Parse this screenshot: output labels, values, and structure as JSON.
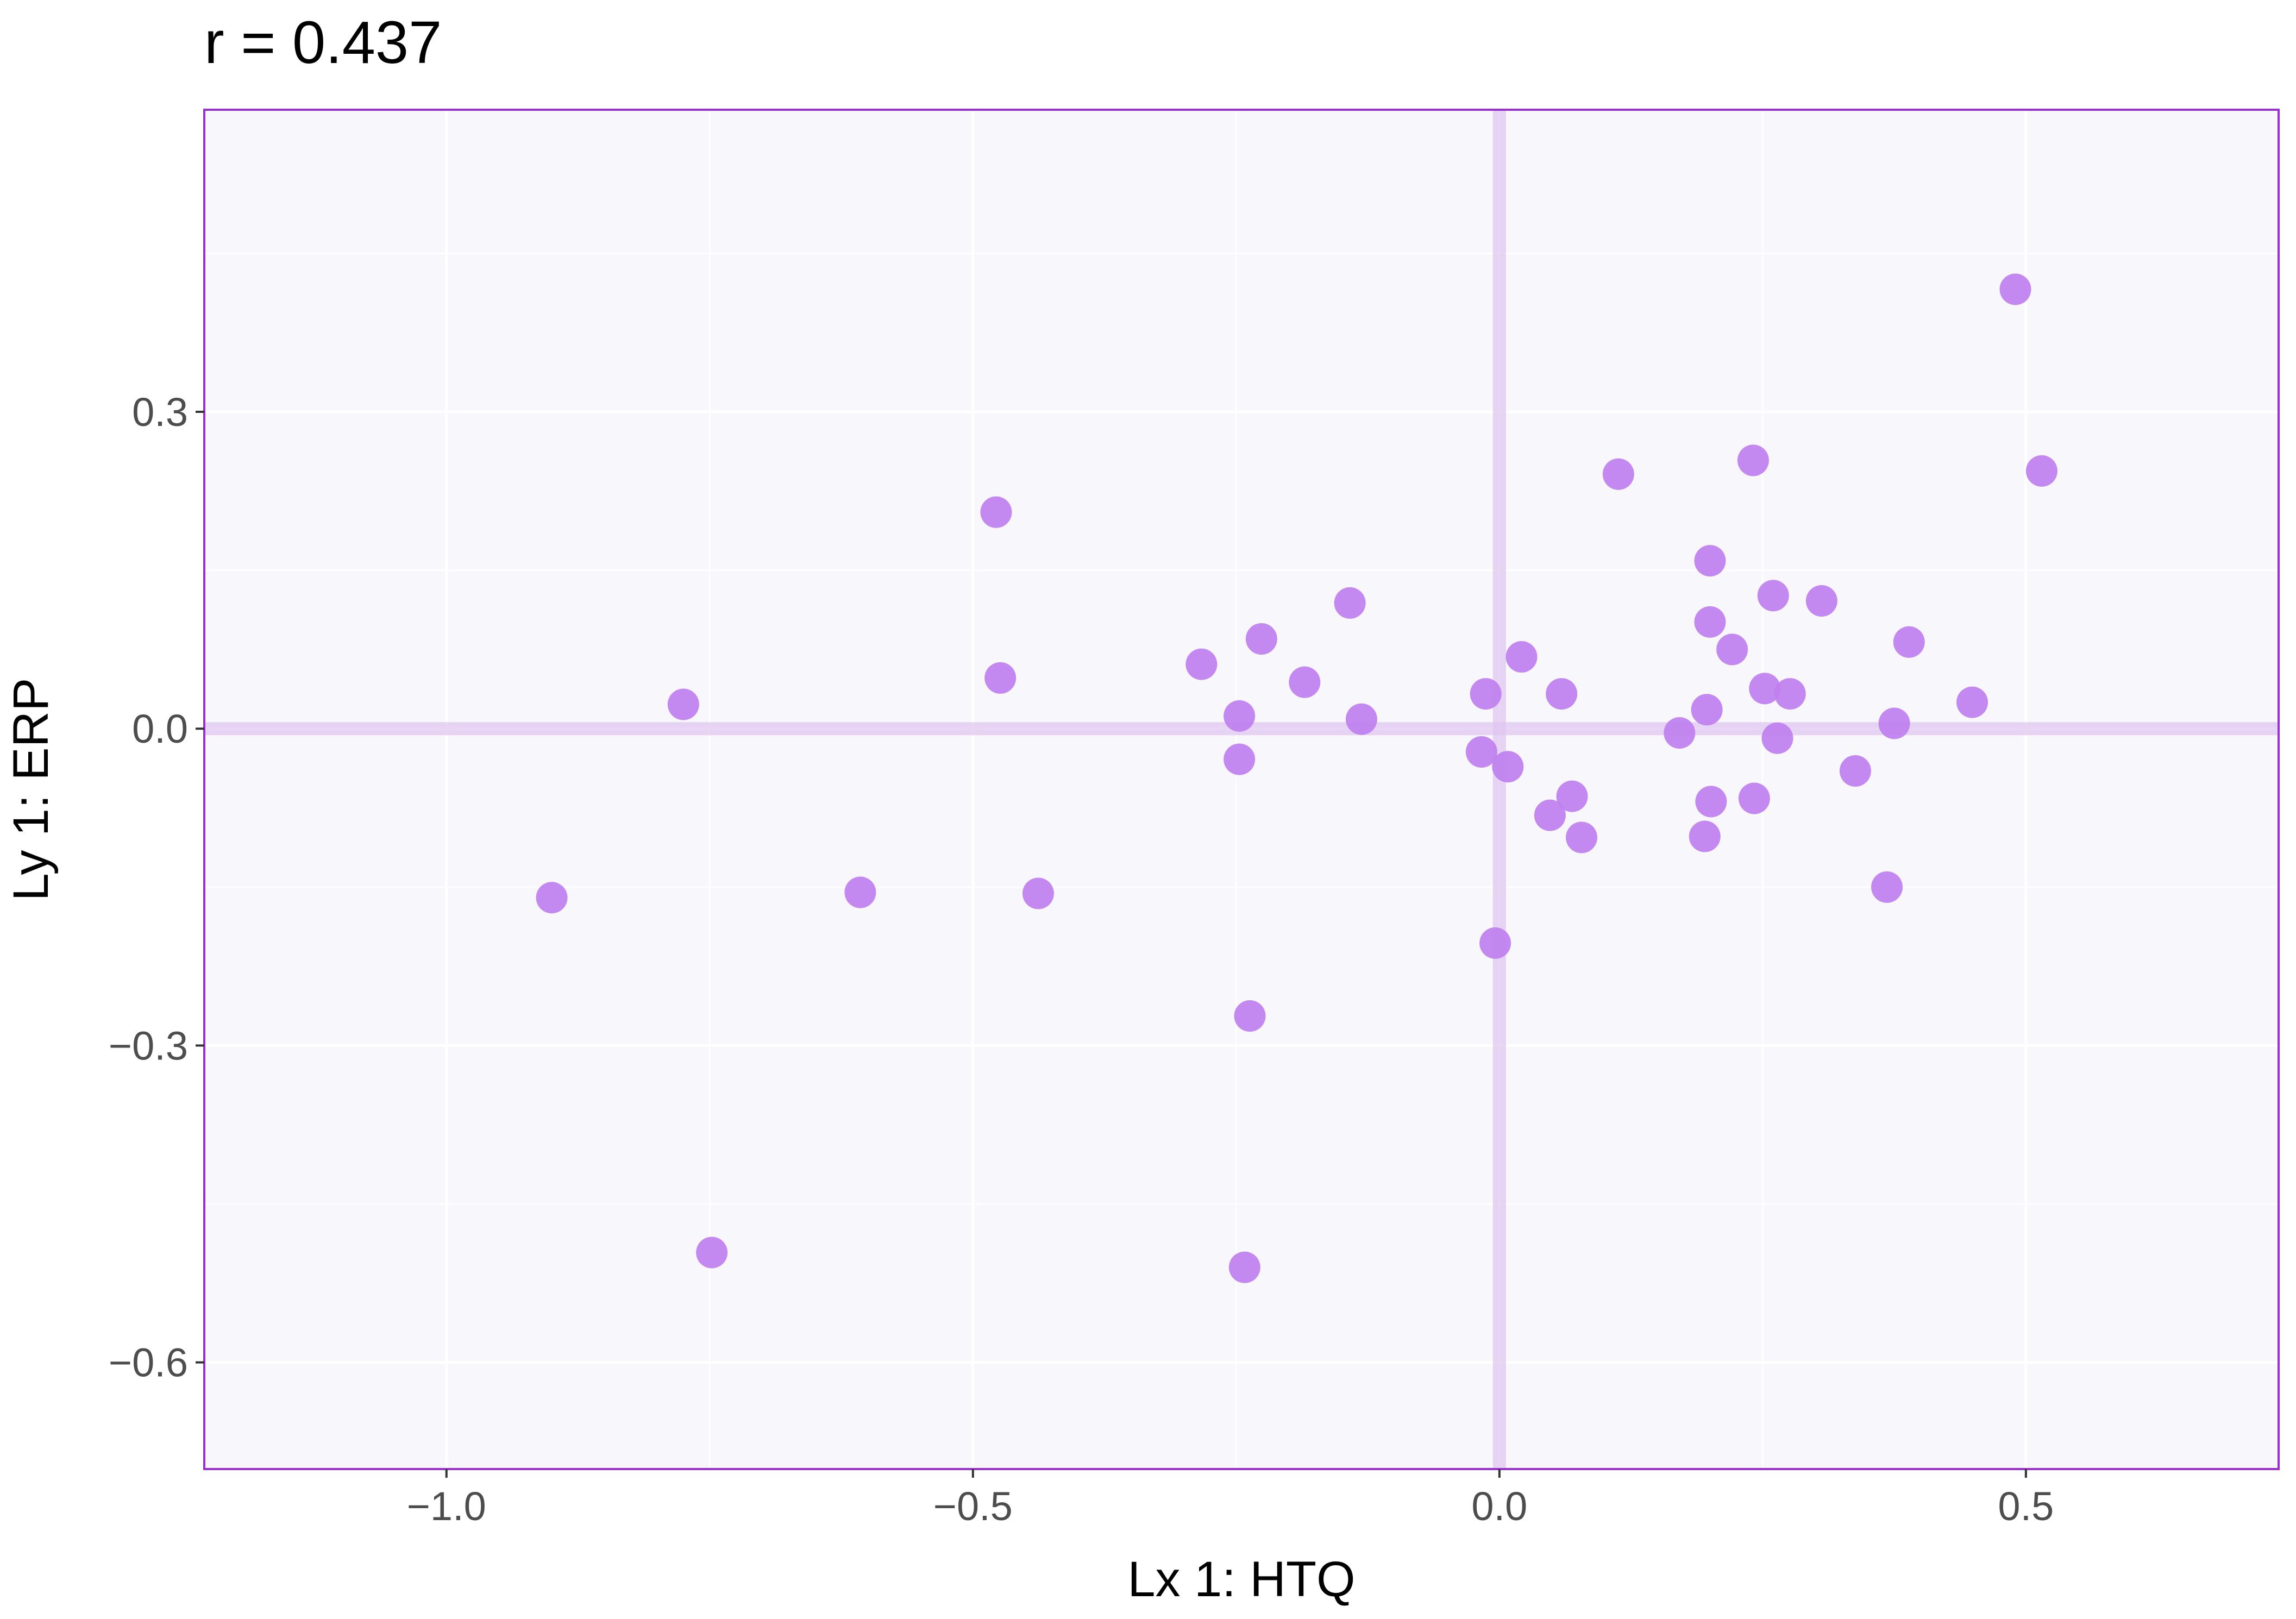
{
  "chart_data": {
    "type": "scatter",
    "title": "r =  0.437",
    "xlabel": "Lx 1: HTQ",
    "ylabel": "Ly 1: ERP",
    "xlim": [
      -1.23,
      0.74
    ],
    "ylim": [
      -0.701,
      0.586
    ],
    "x_ticks": [
      -1.0,
      -0.5,
      0.0,
      0.5
    ],
    "x_tick_labels": [
      "−1.0",
      "−0.5",
      "0.0",
      "0.5"
    ],
    "y_ticks": [
      -0.6,
      -0.3,
      0.0,
      0.3
    ],
    "y_tick_labels": [
      "−0.6",
      "−0.3",
      "0.0",
      "0.3"
    ],
    "grid": true,
    "reference_lines": {
      "x": 0,
      "y": 0
    },
    "colors": {
      "point": "#bf7fef",
      "panel_background": "#f8f7fc",
      "panel_border": "#9932cc",
      "grid": "#ffffff",
      "reference_line": "#dec3ef"
    },
    "points": [
      {
        "x": -0.9,
        "y": -0.16
      },
      {
        "x": -0.775,
        "y": 0.023
      },
      {
        "x": -0.748,
        "y": -0.496
      },
      {
        "x": -0.607,
        "y": -0.155
      },
      {
        "x": -0.478,
        "y": 0.205
      },
      {
        "x": -0.474,
        "y": 0.048
      },
      {
        "x": -0.438,
        "y": -0.156
      },
      {
        "x": -0.283,
        "y": 0.061
      },
      {
        "x": -0.247,
        "y": 0.012
      },
      {
        "x": -0.247,
        "y": -0.029
      },
      {
        "x": -0.242,
        "y": -0.51
      },
      {
        "x": -0.237,
        "y": -0.272
      },
      {
        "x": -0.226,
        "y": 0.085
      },
      {
        "x": -0.185,
        "y": 0.044
      },
      {
        "x": -0.142,
        "y": 0.119
      },
      {
        "x": -0.131,
        "y": 0.009
      },
      {
        "x": -0.017,
        "y": -0.022
      },
      {
        "x": -0.013,
        "y": 0.033
      },
      {
        "x": -0.004,
        "y": -0.203
      },
      {
        "x": 0.008,
        "y": -0.036
      },
      {
        "x": 0.021,
        "y": 0.068
      },
      {
        "x": 0.048,
        "y": -0.082
      },
      {
        "x": 0.059,
        "y": 0.033
      },
      {
        "x": 0.069,
        "y": -0.064
      },
      {
        "x": 0.078,
        "y": -0.103
      },
      {
        "x": 0.113,
        "y": 0.241
      },
      {
        "x": 0.171,
        "y": -0.004
      },
      {
        "x": 0.195,
        "y": -0.102
      },
      {
        "x": 0.197,
        "y": 0.018
      },
      {
        "x": 0.2,
        "y": 0.159
      },
      {
        "x": 0.2,
        "y": 0.101
      },
      {
        "x": 0.201,
        "y": -0.069
      },
      {
        "x": 0.221,
        "y": 0.075
      },
      {
        "x": 0.241,
        "y": 0.254
      },
      {
        "x": 0.242,
        "y": -0.066
      },
      {
        "x": 0.252,
        "y": 0.038
      },
      {
        "x": 0.26,
        "y": 0.126
      },
      {
        "x": 0.264,
        "y": -0.009
      },
      {
        "x": 0.276,
        "y": 0.033
      },
      {
        "x": 0.306,
        "y": 0.121
      },
      {
        "x": 0.338,
        "y": -0.04
      },
      {
        "x": 0.368,
        "y": -0.15
      },
      {
        "x": 0.375,
        "y": 0.005
      },
      {
        "x": 0.389,
        "y": 0.082
      },
      {
        "x": 0.449,
        "y": 0.025
      },
      {
        "x": 0.49,
        "y": 0.416
      },
      {
        "x": 0.515,
        "y": 0.244
      }
    ]
  }
}
